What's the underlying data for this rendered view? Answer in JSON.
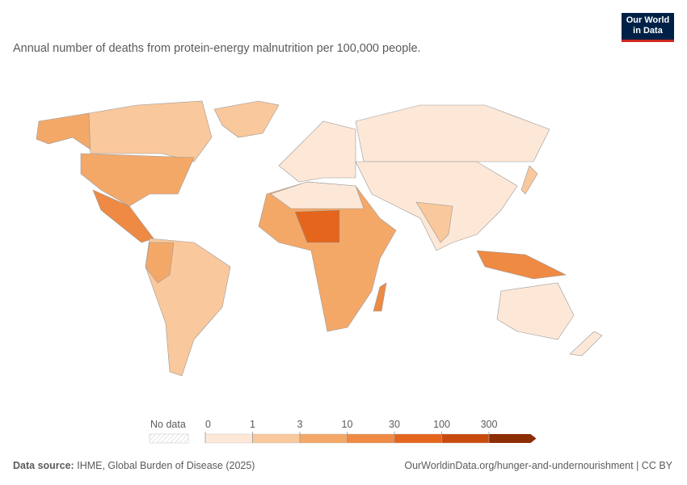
{
  "header": {
    "title": "Annual number of deaths from protein-energy malnutrition per 100,000 people.",
    "logo": [
      "Our World",
      "in Data"
    ]
  },
  "legend": {
    "no_data": "No data",
    "ticks": [
      0,
      1,
      3,
      10,
      30,
      100,
      300
    ],
    "colors": [
      "#fde8d8",
      "#f9c89c",
      "#f4a868",
      "#ee8a44",
      "#e4651b",
      "#c84a0c",
      "#8c2d04"
    ]
  },
  "footer": {
    "source_label": "Data source:",
    "source": "IHME, Global Burden of Disease (2025)",
    "url": "OurWorldinData.org/hunger-and-undernourishment | CC BY"
  }
}
